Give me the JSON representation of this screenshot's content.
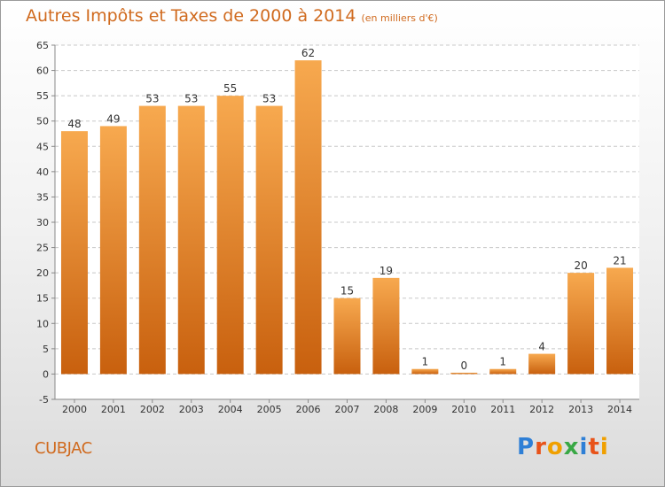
{
  "title": "Autres Impôts et Taxes de 2000 à 2014",
  "subtitle": "(en milliers d'€)",
  "location": "CUBJAC",
  "brand": {
    "letters": [
      "P",
      "r",
      "o",
      "x",
      "i",
      "t",
      "i"
    ],
    "colors": [
      "#2e7fd6",
      "#e8531a",
      "#f0a000",
      "#39a845",
      "#2e7fd6",
      "#e8531a",
      "#f0a000"
    ]
  },
  "colors": {
    "bar_light": "#f7a94f",
    "bar_dark": "#c8600e",
    "accent": "#d06a1e",
    "grid": "#c8c8c8"
  },
  "chart_data": {
    "type": "bar",
    "title": "Autres Impôts et Taxes de 2000 à 2014",
    "subtitle": "(en milliers d'€)",
    "categories": [
      "2000",
      "2001",
      "2002",
      "2003",
      "2004",
      "2005",
      "2006",
      "2007",
      "2008",
      "2009",
      "2010",
      "2011",
      "2012",
      "2013",
      "2014"
    ],
    "values": [
      48,
      49,
      53,
      53,
      55,
      53,
      62,
      15,
      19,
      1,
      0,
      1,
      4,
      20,
      21
    ],
    "ylim": [
      -5,
      65
    ],
    "yticks": [
      -5,
      0,
      5,
      10,
      15,
      20,
      25,
      30,
      35,
      40,
      45,
      50,
      55,
      60,
      65
    ],
    "grid": true,
    "xlabel": "",
    "ylabel": ""
  }
}
